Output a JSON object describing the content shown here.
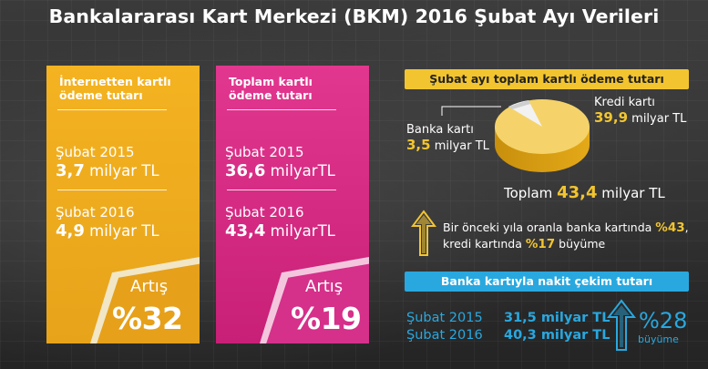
{
  "title": "Bankalararası Kart Merkezi (BKM) 2016 Şubat Ayı Verileri",
  "cards": [
    {
      "heading": "İnternetten kartlı ödeme tutarı",
      "rows": [
        {
          "period": "Şubat 2015",
          "value": "3,7",
          "unit": "milyar TL"
        },
        {
          "period": "Şubat 2016",
          "value": "4,9",
          "unit": "milyar TL"
        }
      ],
      "increase_label": "Artış",
      "increase_value": "%32",
      "color": "#f4b321"
    },
    {
      "heading": "Toplam kartlı ödeme tutarı",
      "rows": [
        {
          "period": "Şubat 2015",
          "value": "36,6",
          "unit": "milyarTL"
        },
        {
          "period": "Şubat 2016",
          "value": "43,4",
          "unit": "milyarTL"
        }
      ],
      "increase_label": "Artış",
      "increase_value": "%19",
      "color": "#e2378f"
    }
  ],
  "total_payment": {
    "heading": "Şubat ayı toplam kartlı ödeme tutarı",
    "debit_label": "Banka kartı",
    "debit_value": "3,5",
    "debit_unit": "milyar TL",
    "credit_label": "Kredi kartı",
    "credit_value": "39,9",
    "credit_unit": "milyar TL",
    "total_label": "Toplam",
    "total_value": "43,4",
    "total_unit": "milyar TL",
    "growth_line1_prefix": "Bir önceki yıla oranla banka kartında ",
    "growth_line1_value": "%43",
    "growth_line2_prefix": "kredi kartında ",
    "growth_line2_value": "%17",
    "growth_line2_suffix": " büyüme",
    "accent": "#f2c530"
  },
  "cash_withdrawal": {
    "heading": "Banka kartıyla nakit çekim tutarı",
    "rows": [
      {
        "period": "Şubat 2015",
        "value": "31,5 milyar TL"
      },
      {
        "period": "Şubat 2016",
        "value": "40,3 milyar TL"
      }
    ],
    "growth_value": "%28",
    "growth_label": "büyüme",
    "accent": "#29a8df"
  },
  "icons": [
    "up-arrow-icon-yellow",
    "up-arrow-icon-blue",
    "pie-chart-icon"
  ]
}
